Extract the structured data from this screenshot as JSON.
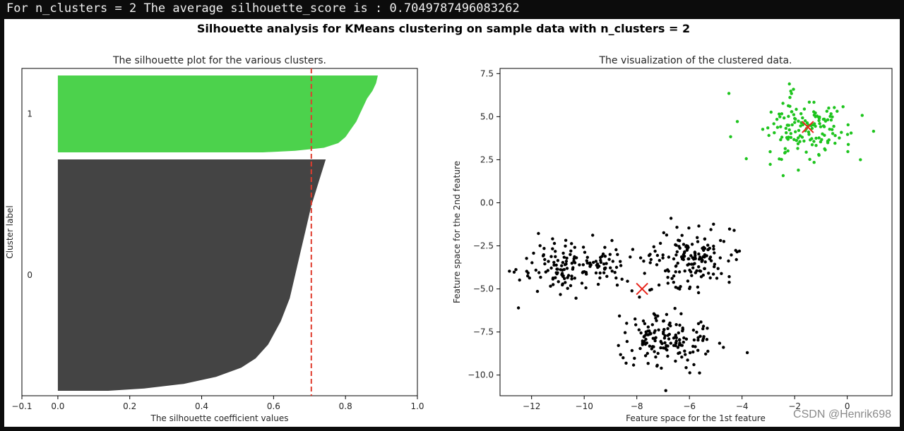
{
  "console": {
    "output_line": "For n_clusters = 2 The average silhouette_score is : 0.7049787496083262"
  },
  "figure": {
    "suptitle": "Silhouette analysis for KMeans clustering on sample data with n_clusters = 2"
  },
  "watermark": "CSDN @Henrik698",
  "colors": {
    "cluster_0": "#444444",
    "cluster_1": "#4cd24c",
    "average_line": "#e03c2e",
    "centroid": "#e8231a"
  },
  "chart_data": [
    {
      "type": "area",
      "title": "The silhouette plot for the various clusters.",
      "xlabel": "The silhouette coefficient values",
      "ylabel": "Cluster label",
      "xlim": [
        -0.1,
        1.0
      ],
      "xticks": [
        "−0.1",
        "0.0",
        "0.2",
        "0.4",
        "0.6",
        "0.8",
        "1.0"
      ],
      "xtick_values": [
        -0.1,
        0.0,
        0.2,
        0.4,
        0.6,
        0.8,
        1.0
      ],
      "clusters": [
        {
          "label": "0",
          "color": "#444444",
          "profile": [
            [
              0.0,
              0.745
            ],
            [
              0.05,
              0.735
            ],
            [
              0.1,
              0.725
            ],
            [
              0.15,
              0.715
            ],
            [
              0.2,
              0.705
            ],
            [
              0.3,
              0.69
            ],
            [
              0.4,
              0.675
            ],
            [
              0.5,
              0.66
            ],
            [
              0.6,
              0.645
            ],
            [
              0.7,
              0.62
            ],
            [
              0.8,
              0.585
            ],
            [
              0.86,
              0.55
            ],
            [
              0.9,
              0.51
            ],
            [
              0.94,
              0.44
            ],
            [
              0.97,
              0.35
            ],
            [
              0.99,
              0.24
            ],
            [
              1.0,
              0.14
            ]
          ]
        },
        {
          "label": "1",
          "color": "#4cd24c",
          "profile": [
            [
              0.0,
              0.89
            ],
            [
              0.1,
              0.885
            ],
            [
              0.2,
              0.875
            ],
            [
              0.3,
              0.86
            ],
            [
              0.4,
              0.85
            ],
            [
              0.5,
              0.84
            ],
            [
              0.6,
              0.83
            ],
            [
              0.7,
              0.815
            ],
            [
              0.8,
              0.8
            ],
            [
              0.88,
              0.78
            ],
            [
              0.94,
              0.74
            ],
            [
              0.98,
              0.66
            ],
            [
              1.0,
              0.57
            ]
          ]
        }
      ],
      "average_silhouette": 0.7049787496083262
    },
    {
      "type": "scatter",
      "title": "The visualization of the clustered data.",
      "xlabel": "Feature space for the 1st feature",
      "ylabel": "Feature space for the 2nd feature",
      "xlim": [
        -13.2,
        1.7
      ],
      "ylim": [
        -11.2,
        7.8
      ],
      "xticks": [
        "−12",
        "−10",
        "−8",
        "−6",
        "−4",
        "−2",
        "0"
      ],
      "xtick_values": [
        -12,
        -10,
        -8,
        -6,
        -4,
        -2,
        0
      ],
      "yticks": [
        "7.5",
        "5.0",
        "2.5",
        "0.0",
        "−2.5",
        "−5.0",
        "−7.5",
        "−10.0"
      ],
      "ytick_values": [
        7.5,
        5.0,
        2.5,
        0.0,
        -2.5,
        -5.0,
        -7.5,
        -10.0
      ],
      "series": [
        {
          "cluster": 1,
          "color": "#1ec41e",
          "blobs": [
            {
              "center": [
                -1.5,
                4.3
              ],
              "sd": [
                0.85,
                0.85
              ],
              "n": 150
            }
          ],
          "extra_points": [
            [
              -4.5,
              6.35
            ],
            [
              1.0,
              4.15
            ],
            [
              0.5,
              2.5
            ],
            [
              -2.2,
              6.9
            ]
          ]
        },
        {
          "cluster": 0,
          "color": "#000000",
          "blobs": [
            {
              "center": [
                -10.2,
                -3.8
              ],
              "sd": [
                0.95,
                0.7
              ],
              "n": 150
            },
            {
              "center": [
                -6.0,
                -3.3
              ],
              "sd": [
                0.85,
                0.8
              ],
              "n": 155
            },
            {
              "center": [
                -7.0,
                -8.0
              ],
              "sd": [
                0.85,
                0.8
              ],
              "n": 155
            }
          ],
          "extra_points": [
            [
              -12.5,
              -6.1
            ],
            [
              -3.8,
              -8.7
            ],
            [
              -4.1,
              -2.8
            ],
            [
              -6.9,
              -10.9
            ],
            [
              -4.3,
              -1.6
            ],
            [
              -6.7,
              -0.9
            ]
          ]
        }
      ],
      "centroids": [
        {
          "cluster": 1,
          "x": -1.5,
          "y": 4.4
        },
        {
          "cluster": 0,
          "x": -7.8,
          "y": -5.0
        }
      ]
    }
  ]
}
